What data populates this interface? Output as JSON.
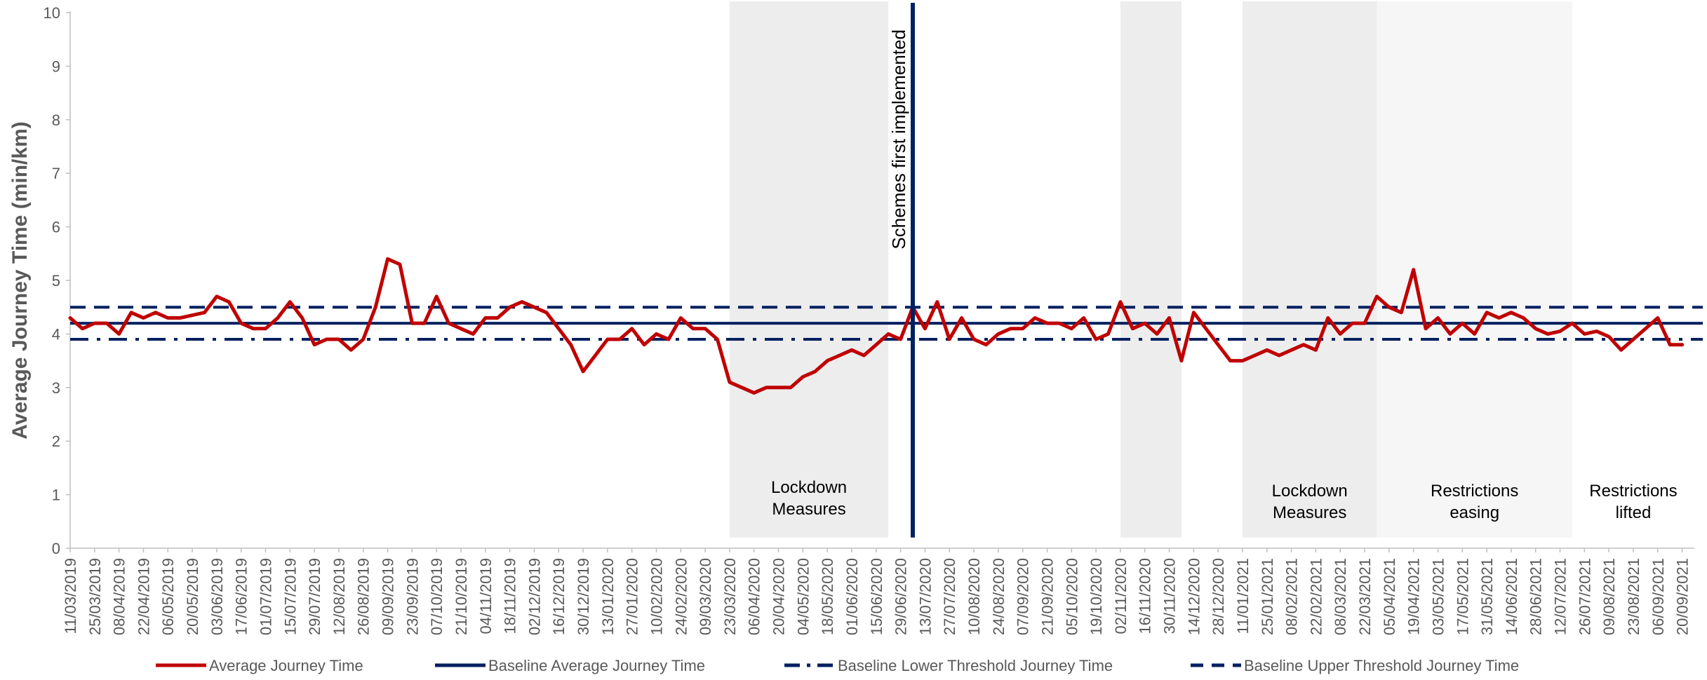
{
  "chart_data": {
    "type": "line",
    "title": "",
    "xlabel": "",
    "ylabel": "Average Journey Time (min/km)",
    "ylim": [
      0,
      10
    ],
    "yticks": [
      0,
      1,
      2,
      3,
      4,
      5,
      6,
      7,
      8,
      9,
      10
    ],
    "grid": false,
    "legend_position": "bottom",
    "x_start": "11/03/2019",
    "x_end": "27/09/2021",
    "x_tick_labels": [
      "11/03/2019",
      "25/03/2019",
      "08/04/2019",
      "22/04/2019",
      "06/05/2019",
      "20/05/2019",
      "03/06/2019",
      "17/06/2019",
      "01/07/2019",
      "15/07/2019",
      "29/07/2019",
      "12/08/2019",
      "26/08/2019",
      "09/09/2019",
      "23/09/2019",
      "07/10/2019",
      "21/10/2019",
      "04/11/2019",
      "18/11/2019",
      "02/12/2019",
      "16/12/2019",
      "30/12/2019",
      "13/01/2020",
      "27/01/2020",
      "10/02/2020",
      "24/02/2020",
      "09/03/2020",
      "23/03/2020",
      "06/04/2020",
      "20/04/2020",
      "04/05/2020",
      "18/05/2020",
      "01/06/2020",
      "15/06/2020",
      "29/06/2020",
      "13/07/2020",
      "27/07/2020",
      "10/08/2020",
      "24/08/2020",
      "07/09/2020",
      "21/09/2020",
      "05/10/2020",
      "19/10/2020",
      "02/11/2020",
      "16/11/2020",
      "30/11/2020",
      "14/12/2020",
      "28/12/2020",
      "11/01/2021",
      "25/01/2021",
      "08/02/2021",
      "22/02/2021",
      "08/03/2021",
      "22/03/2021",
      "05/04/2021",
      "19/04/2021",
      "03/05/2021",
      "17/05/2021",
      "31/05/2021",
      "14/06/2021",
      "28/06/2021",
      "12/07/2021",
      "26/07/2021",
      "09/08/2021",
      "23/08/2021",
      "06/09/2021",
      "20/09/2021"
    ],
    "series": [
      {
        "name": "Average Journey Time",
        "color": "#c00000",
        "style": "solid",
        "values": [
          4.3,
          4.1,
          4.2,
          4.2,
          4.0,
          4.4,
          4.3,
          4.4,
          4.3,
          4.3,
          4.35,
          4.4,
          4.7,
          4.6,
          4.2,
          4.1,
          4.1,
          4.3,
          4.6,
          4.3,
          3.8,
          3.9,
          3.9,
          3.7,
          3.9,
          4.5,
          5.4,
          5.3,
          4.2,
          4.2,
          4.7,
          4.2,
          4.1,
          4.0,
          4.3,
          4.3,
          4.5,
          4.6,
          4.5,
          4.4,
          4.1,
          3.8,
          3.3,
          3.6,
          3.9,
          3.9,
          4.1,
          3.8,
          4.0,
          3.9,
          4.3,
          4.1,
          4.1,
          3.9,
          3.1,
          3.0,
          2.9,
          3.0,
          3.0,
          3.0,
          3.2,
          3.3,
          3.5,
          3.6,
          3.7,
          3.6,
          3.8,
          4.0,
          3.9,
          4.5,
          4.1,
          4.6,
          3.9,
          4.3,
          3.9,
          3.8,
          4.0,
          4.1,
          4.1,
          4.3,
          4.2,
          4.2,
          4.1,
          4.3,
          3.9,
          4.0,
          4.6,
          4.1,
          4.2,
          4.0,
          4.3,
          3.5,
          4.4,
          4.1,
          3.8,
          3.5,
          3.5,
          3.6,
          3.7,
          3.6,
          3.7,
          3.8,
          3.7,
          4.3,
          4.0,
          4.2,
          4.2,
          4.7,
          4.5,
          4.4,
          5.2,
          4.1,
          4.3,
          4.0,
          4.2,
          4.0,
          4.4,
          4.3,
          4.4,
          4.3,
          4.1,
          4.0,
          4.05,
          4.2,
          4.0,
          4.05,
          3.95,
          3.7,
          3.9,
          4.1,
          4.3,
          3.8,
          3.8
        ]
      },
      {
        "name": "Baseline Average Journey Time",
        "color": "#002060",
        "style": "solid",
        "value": 4.2
      },
      {
        "name": "Baseline Lower Threshold Journey Time",
        "color": "#002060",
        "style": "dash-dot",
        "value": 3.9
      },
      {
        "name": "Baseline Upper Threshold Journey Time",
        "color": "#002060",
        "style": "dashed",
        "value": 4.5
      }
    ],
    "shaded_regions": [
      {
        "from": "23/03/2020",
        "to": "22/06/2020",
        "label_lines": [
          "Lockdown",
          "Measures"
        ],
        "shade": "#ededed"
      },
      {
        "from": "02/11/2020",
        "to": "07/12/2020",
        "label_lines": [],
        "shade": "#ededed"
      },
      {
        "from": "11/01/2021",
        "to": "29/03/2021",
        "label_lines": [
          "Lockdown",
          "Measures"
        ],
        "shade": "#ededed"
      },
      {
        "from": "29/03/2021",
        "to": "19/07/2021",
        "label_lines": [
          "Restrictions",
          "easing"
        ],
        "shade": "#f6f6f6"
      },
      {
        "from": "19/07/2021",
        "to": "27/09/2021",
        "label_lines": [
          "Restrictions",
          "lifted"
        ],
        "shade": "none"
      }
    ],
    "vertical_marker": {
      "date": "06/07/2020",
      "label": "Schemes first implemented",
      "color": "#002060"
    }
  }
}
